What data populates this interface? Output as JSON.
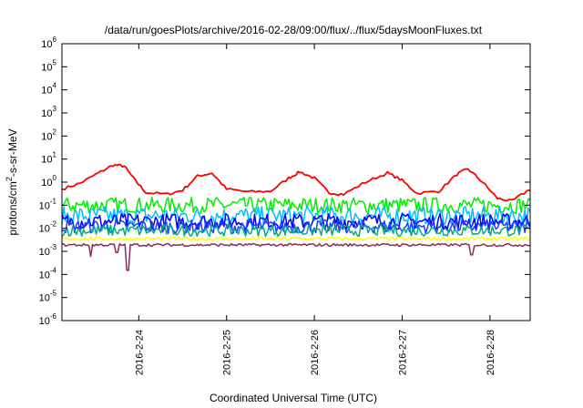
{
  "chart_data": {
    "type": "line",
    "title": "/data/run/goesPlots/archive/2016-02-28/09:00/flux/../flux/5daysMoonFluxes.txt",
    "xlabel": "Coordinated Universal Time (UTC)",
    "ylabel_parts": [
      "protons/cm",
      "2",
      "-s-sr-MeV"
    ],
    "y_scale": "log",
    "ylim": [
      1e-06,
      1000000.0
    ],
    "y_ticks": [
      {
        "base": "10",
        "exp": "-6",
        "value": 1e-06
      },
      {
        "base": "10",
        "exp": "-5",
        "value": 1e-05
      },
      {
        "base": "10",
        "exp": "-4",
        "value": 0.0001
      },
      {
        "base": "10",
        "exp": "-3",
        "value": 0.001
      },
      {
        "base": "10",
        "exp": "-2",
        "value": 0.01
      },
      {
        "base": "10",
        "exp": "-1",
        "value": 0.1
      },
      {
        "base": "10",
        "exp": "0",
        "value": 1
      },
      {
        "base": "10",
        "exp": "1",
        "value": 10
      },
      {
        "base": "10",
        "exp": "2",
        "value": 100
      },
      {
        "base": "10",
        "exp": "3",
        "value": 1000
      },
      {
        "base": "10",
        "exp": "4",
        "value": 10000
      },
      {
        "base": "10",
        "exp": "5",
        "value": 100000
      },
      {
        "base": "10",
        "exp": "6",
        "value": 1000000
      }
    ],
    "xlim": [
      "2016-02-23T03:00",
      "2016-02-28T11:00"
    ],
    "x_ticks": [
      {
        "label": "2016-2-24",
        "value": "2016-02-24T00:00"
      },
      {
        "label": "2016-2-25",
        "value": "2016-02-25T00:00"
      },
      {
        "label": "2016-2-26",
        "value": "2016-02-26T00:00"
      },
      {
        "label": "2016-2-27",
        "value": "2016-02-27T00:00"
      },
      {
        "label": "2016-2-28",
        "value": "2016-02-28T00:00"
      }
    ],
    "grid": false,
    "legend": "none",
    "series": [
      {
        "color": "#ff0000",
        "x": [
          "2016-02-23T03:00",
          "2016-02-23T08:00",
          "2016-02-23T13:00",
          "2016-02-23T17:00",
          "2016-02-23T20:00",
          "2016-02-23T23:00",
          "2016-02-24T02:00",
          "2016-02-24T08:00",
          "2016-02-24T12:00",
          "2016-02-24T16:00",
          "2016-02-24T20:00",
          "2016-02-25T00:00",
          "2016-02-25T06:00",
          "2016-02-25T12:00",
          "2016-02-25T17:00",
          "2016-02-25T20:00",
          "2016-02-26T00:00",
          "2016-02-26T04:00",
          "2016-02-26T08:00",
          "2016-02-26T14:00",
          "2016-02-26T20:00",
          "2016-02-27T00:00",
          "2016-02-27T04:00",
          "2016-02-27T10:00",
          "2016-02-27T15:00",
          "2016-02-27T18:00",
          "2016-02-27T22:00",
          "2016-02-28T02:00",
          "2016-02-28T06:00",
          "2016-02-28T11:00"
        ],
        "y": [
          0.5,
          0.9,
          2.5,
          5.5,
          5,
          1.2,
          0.35,
          0.3,
          0.45,
          1.8,
          2.5,
          0.5,
          0.38,
          0.4,
          1.5,
          2.8,
          1.5,
          0.35,
          0.3,
          1.0,
          2.5,
          1.2,
          0.33,
          0.4,
          2.2,
          3.8,
          1.0,
          0.2,
          0.15,
          0.5
        ]
      },
      {
        "color": "#00ee00",
        "level": 0.1,
        "spread": 0.35
      },
      {
        "color": "#00bfff",
        "level": 0.035,
        "spread": 0.4
      },
      {
        "color": "#0000ff",
        "level": 0.02,
        "spread": 0.35
      },
      {
        "color": "#1e3cff",
        "level": 0.012,
        "spread": 0.3
      },
      {
        "color": "#00aa88",
        "level": 0.008,
        "spread": 0.25
      },
      {
        "color": "#ffff00",
        "level": 0.0035,
        "spread": 0.08
      },
      {
        "color": "#8b2a5a",
        "level": 0.0019,
        "spread": 0.06,
        "dips": [
          {
            "x": "2016-02-23T11:00",
            "y": 0.0006
          },
          {
            "x": "2016-02-23T18:00",
            "y": 0.0009
          },
          {
            "x": "2016-02-23T21:00",
            "y": 0.00015
          },
          {
            "x": "2016-02-27T19:00",
            "y": 0.0007
          }
        ]
      }
    ]
  }
}
